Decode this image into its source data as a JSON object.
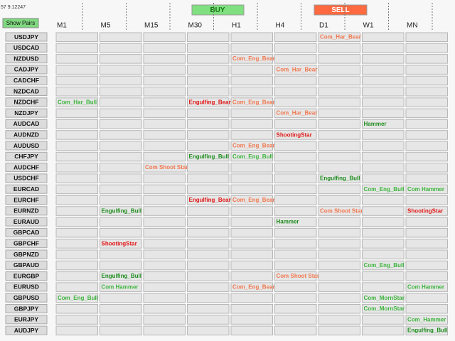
{
  "header": {
    "info": "57 9.12247",
    "show_button": "Show Pairs",
    "buy_button": "BUY",
    "sell_button": "SELL"
  },
  "timeframes": [
    "M1",
    "M5",
    "M15",
    "M30",
    "H1",
    "H4",
    "D1",
    "W1",
    "MN"
  ],
  "rows": [
    {
      "pair": "USDJPY",
      "cells": [
        null,
        null,
        null,
        null,
        null,
        null,
        {
          "text": "Com_Har_Bear",
          "color": "#f07850"
        },
        null,
        null
      ]
    },
    {
      "pair": "USDCAD",
      "cells": [
        null,
        null,
        null,
        null,
        null,
        null,
        null,
        null,
        null
      ]
    },
    {
      "pair": "NZDUSD",
      "cells": [
        null,
        null,
        null,
        null,
        {
          "text": "Com_Eng_Bear",
          "color": "#f07850"
        },
        null,
        null,
        null,
        null
      ]
    },
    {
      "pair": "CADJPY",
      "cells": [
        null,
        null,
        null,
        null,
        null,
        {
          "text": "Com_Har_Bear",
          "color": "#f07850"
        },
        null,
        null,
        null
      ]
    },
    {
      "pair": "CADCHF",
      "cells": [
        null,
        null,
        null,
        null,
        null,
        null,
        null,
        null,
        null
      ]
    },
    {
      "pair": "NZDCAD",
      "cells": [
        null,
        null,
        null,
        null,
        null,
        null,
        null,
        null,
        null
      ]
    },
    {
      "pair": "NZDCHF",
      "cells": [
        {
          "text": "Com_Har_Bull",
          "color": "#3cb43c"
        },
        null,
        null,
        {
          "text": "Engulfing_Bear",
          "color": "#e01818"
        },
        {
          "text": "Com_Eng_Bear",
          "color": "#f07850"
        },
        null,
        null,
        null,
        null
      ]
    },
    {
      "pair": "NZDJPY",
      "cells": [
        null,
        null,
        null,
        null,
        null,
        {
          "text": "Com_Har_Bear",
          "color": "#f07850"
        },
        null,
        null,
        null
      ]
    },
    {
      "pair": "AUDCAD",
      "cells": [
        null,
        null,
        null,
        null,
        null,
        null,
        null,
        {
          "text": "Hammer",
          "color": "#1e8c1e"
        },
        null
      ]
    },
    {
      "pair": "AUDNZD",
      "cells": [
        null,
        null,
        null,
        null,
        null,
        {
          "text": "ShootingStar",
          "color": "#e01818"
        },
        null,
        null,
        null
      ]
    },
    {
      "pair": "AUDUSD",
      "cells": [
        null,
        null,
        null,
        null,
        {
          "text": "Com_Eng_Bear",
          "color": "#f07850"
        },
        null,
        null,
        null,
        null
      ]
    },
    {
      "pair": "CHFJPY",
      "cells": [
        null,
        null,
        null,
        {
          "text": "Engulfing_Bull",
          "color": "#1e8c1e"
        },
        {
          "text": "Com_Eng_Bull",
          "color": "#3cb43c"
        },
        null,
        null,
        null,
        null
      ]
    },
    {
      "pair": "AUDCHF",
      "cells": [
        null,
        null,
        {
          "text": "Com Shoot Star",
          "color": "#f07850"
        },
        null,
        null,
        null,
        null,
        null,
        null
      ]
    },
    {
      "pair": "USDCHF",
      "cells": [
        null,
        null,
        null,
        null,
        null,
        null,
        {
          "text": "Engulfing_Bull",
          "color": "#1e8c1e"
        },
        null,
        null
      ]
    },
    {
      "pair": "EURCAD",
      "cells": [
        null,
        null,
        null,
        null,
        null,
        null,
        null,
        {
          "text": "Com_Eng_Bull",
          "color": "#3cb43c"
        },
        {
          "text": "Com Hammer",
          "color": "#3cb43c"
        }
      ]
    },
    {
      "pair": "EURCHF",
      "cells": [
        null,
        null,
        null,
        {
          "text": "Engulfing_Bear",
          "color": "#e01818"
        },
        {
          "text": "Com_Eng_Bear",
          "color": "#f07850"
        },
        null,
        null,
        null,
        null
      ]
    },
    {
      "pair": "EURNZD",
      "cells": [
        null,
        {
          "text": "Engulfing_Bull",
          "color": "#1e8c1e"
        },
        null,
        null,
        null,
        null,
        {
          "text": "Com Shoot Star",
          "color": "#f07850"
        },
        null,
        {
          "text": "ShootingStar",
          "color": "#e01818"
        }
      ]
    },
    {
      "pair": "EURAUD",
      "cells": [
        null,
        null,
        null,
        null,
        null,
        {
          "text": "Hammer",
          "color": "#1e8c1e"
        },
        null,
        null,
        null
      ]
    },
    {
      "pair": "GBPCAD",
      "cells": [
        null,
        null,
        null,
        null,
        null,
        null,
        null,
        null,
        null
      ]
    },
    {
      "pair": "GBPCHF",
      "cells": [
        null,
        {
          "text": "ShootingStar",
          "color": "#e01818"
        },
        null,
        null,
        null,
        null,
        null,
        null,
        null
      ]
    },
    {
      "pair": "GBPNZD",
      "cells": [
        null,
        null,
        null,
        null,
        null,
        null,
        null,
        null,
        null
      ]
    },
    {
      "pair": "GBPAUD",
      "cells": [
        null,
        null,
        null,
        null,
        null,
        null,
        null,
        {
          "text": "Com_Eng_Bull",
          "color": "#3cb43c"
        },
        null
      ]
    },
    {
      "pair": "EURGBP",
      "cells": [
        null,
        {
          "text": "Engulfing_Bull",
          "color": "#1e8c1e"
        },
        null,
        null,
        null,
        {
          "text": "Com Shoot Star",
          "color": "#f07850"
        },
        null,
        null,
        null
      ]
    },
    {
      "pair": "EURUSD",
      "cells": [
        null,
        {
          "text": "Com Hammer",
          "color": "#3cb43c"
        },
        null,
        null,
        {
          "text": "Com_Eng_Bear",
          "color": "#f07850"
        },
        null,
        null,
        null,
        {
          "text": "Com Hammer",
          "color": "#3cb43c"
        }
      ]
    },
    {
      "pair": "GBPUSD",
      "cells": [
        {
          "text": "Com_Eng_Bull",
          "color": "#3cb43c"
        },
        null,
        null,
        null,
        null,
        null,
        null,
        {
          "text": "Com_MornStar",
          "color": "#3cb43c"
        },
        null
      ]
    },
    {
      "pair": "GBPJPY",
      "cells": [
        null,
        null,
        null,
        null,
        null,
        null,
        null,
        {
          "text": "Com_MornStar",
          "color": "#3cb43c"
        },
        null
      ]
    },
    {
      "pair": "EURJPY",
      "cells": [
        null,
        null,
        null,
        null,
        null,
        null,
        null,
        null,
        {
          "text": "Com_Hammer",
          "color": "#3cb43c"
        }
      ]
    },
    {
      "pair": "AUDJPY",
      "cells": [
        null,
        null,
        null,
        null,
        null,
        null,
        null,
        null,
        {
          "text": "Engulfing_Bull",
          "color": "#1e8c1e"
        }
      ]
    }
  ]
}
